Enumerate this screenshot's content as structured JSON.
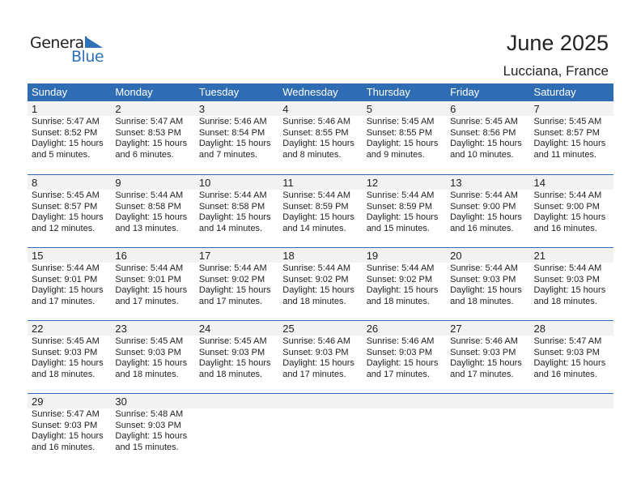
{
  "logo": {
    "text_general": "General",
    "text_blue": "Blue",
    "accent": "#2f72b8"
  },
  "header": {
    "title": "June 2025",
    "location": "Lucciana, France"
  },
  "weekdays": [
    "Sunday",
    "Monday",
    "Tuesday",
    "Wednesday",
    "Thursday",
    "Friday",
    "Saturday"
  ],
  "colors": {
    "header_bg": "#2e6db3",
    "date_band": "#f2f2f2"
  },
  "days": [
    {
      "day": "1",
      "sunrise": "Sunrise: 5:47 AM",
      "sunset": "Sunset: 8:52 PM",
      "daylight1": "Daylight: 15 hours",
      "daylight2": "and 5 minutes."
    },
    {
      "day": "2",
      "sunrise": "Sunrise: 5:47 AM",
      "sunset": "Sunset: 8:53 PM",
      "daylight1": "Daylight: 15 hours",
      "daylight2": "and 6 minutes."
    },
    {
      "day": "3",
      "sunrise": "Sunrise: 5:46 AM",
      "sunset": "Sunset: 8:54 PM",
      "daylight1": "Daylight: 15 hours",
      "daylight2": "and 7 minutes."
    },
    {
      "day": "4",
      "sunrise": "Sunrise: 5:46 AM",
      "sunset": "Sunset: 8:55 PM",
      "daylight1": "Daylight: 15 hours",
      "daylight2": "and 8 minutes."
    },
    {
      "day": "5",
      "sunrise": "Sunrise: 5:45 AM",
      "sunset": "Sunset: 8:55 PM",
      "daylight1": "Daylight: 15 hours",
      "daylight2": "and 9 minutes."
    },
    {
      "day": "6",
      "sunrise": "Sunrise: 5:45 AM",
      "sunset": "Sunset: 8:56 PM",
      "daylight1": "Daylight: 15 hours",
      "daylight2": "and 10 minutes."
    },
    {
      "day": "7",
      "sunrise": "Sunrise: 5:45 AM",
      "sunset": "Sunset: 8:57 PM",
      "daylight1": "Daylight: 15 hours",
      "daylight2": "and 11 minutes."
    },
    {
      "day": "8",
      "sunrise": "Sunrise: 5:45 AM",
      "sunset": "Sunset: 8:57 PM",
      "daylight1": "Daylight: 15 hours",
      "daylight2": "and 12 minutes."
    },
    {
      "day": "9",
      "sunrise": "Sunrise: 5:44 AM",
      "sunset": "Sunset: 8:58 PM",
      "daylight1": "Daylight: 15 hours",
      "daylight2": "and 13 minutes."
    },
    {
      "day": "10",
      "sunrise": "Sunrise: 5:44 AM",
      "sunset": "Sunset: 8:58 PM",
      "daylight1": "Daylight: 15 hours",
      "daylight2": "and 14 minutes."
    },
    {
      "day": "11",
      "sunrise": "Sunrise: 5:44 AM",
      "sunset": "Sunset: 8:59 PM",
      "daylight1": "Daylight: 15 hours",
      "daylight2": "and 14 minutes."
    },
    {
      "day": "12",
      "sunrise": "Sunrise: 5:44 AM",
      "sunset": "Sunset: 8:59 PM",
      "daylight1": "Daylight: 15 hours",
      "daylight2": "and 15 minutes."
    },
    {
      "day": "13",
      "sunrise": "Sunrise: 5:44 AM",
      "sunset": "Sunset: 9:00 PM",
      "daylight1": "Daylight: 15 hours",
      "daylight2": "and 16 minutes."
    },
    {
      "day": "14",
      "sunrise": "Sunrise: 5:44 AM",
      "sunset": "Sunset: 9:00 PM",
      "daylight1": "Daylight: 15 hours",
      "daylight2": "and 16 minutes."
    },
    {
      "day": "15",
      "sunrise": "Sunrise: 5:44 AM",
      "sunset": "Sunset: 9:01 PM",
      "daylight1": "Daylight: 15 hours",
      "daylight2": "and 17 minutes."
    },
    {
      "day": "16",
      "sunrise": "Sunrise: 5:44 AM",
      "sunset": "Sunset: 9:01 PM",
      "daylight1": "Daylight: 15 hours",
      "daylight2": "and 17 minutes."
    },
    {
      "day": "17",
      "sunrise": "Sunrise: 5:44 AM",
      "sunset": "Sunset: 9:02 PM",
      "daylight1": "Daylight: 15 hours",
      "daylight2": "and 17 minutes."
    },
    {
      "day": "18",
      "sunrise": "Sunrise: 5:44 AM",
      "sunset": "Sunset: 9:02 PM",
      "daylight1": "Daylight: 15 hours",
      "daylight2": "and 18 minutes."
    },
    {
      "day": "19",
      "sunrise": "Sunrise: 5:44 AM",
      "sunset": "Sunset: 9:02 PM",
      "daylight1": "Daylight: 15 hours",
      "daylight2": "and 18 minutes."
    },
    {
      "day": "20",
      "sunrise": "Sunrise: 5:44 AM",
      "sunset": "Sunset: 9:03 PM",
      "daylight1": "Daylight: 15 hours",
      "daylight2": "and 18 minutes."
    },
    {
      "day": "21",
      "sunrise": "Sunrise: 5:44 AM",
      "sunset": "Sunset: 9:03 PM",
      "daylight1": "Daylight: 15 hours",
      "daylight2": "and 18 minutes."
    },
    {
      "day": "22",
      "sunrise": "Sunrise: 5:45 AM",
      "sunset": "Sunset: 9:03 PM",
      "daylight1": "Daylight: 15 hours",
      "daylight2": "and 18 minutes."
    },
    {
      "day": "23",
      "sunrise": "Sunrise: 5:45 AM",
      "sunset": "Sunset: 9:03 PM",
      "daylight1": "Daylight: 15 hours",
      "daylight2": "and 18 minutes."
    },
    {
      "day": "24",
      "sunrise": "Sunrise: 5:45 AM",
      "sunset": "Sunset: 9:03 PM",
      "daylight1": "Daylight: 15 hours",
      "daylight2": "and 18 minutes."
    },
    {
      "day": "25",
      "sunrise": "Sunrise: 5:46 AM",
      "sunset": "Sunset: 9:03 PM",
      "daylight1": "Daylight: 15 hours",
      "daylight2": "and 17 minutes."
    },
    {
      "day": "26",
      "sunrise": "Sunrise: 5:46 AM",
      "sunset": "Sunset: 9:03 PM",
      "daylight1": "Daylight: 15 hours",
      "daylight2": "and 17 minutes."
    },
    {
      "day": "27",
      "sunrise": "Sunrise: 5:46 AM",
      "sunset": "Sunset: 9:03 PM",
      "daylight1": "Daylight: 15 hours",
      "daylight2": "and 17 minutes."
    },
    {
      "day": "28",
      "sunrise": "Sunrise: 5:47 AM",
      "sunset": "Sunset: 9:03 PM",
      "daylight1": "Daylight: 15 hours",
      "daylight2": "and 16 minutes."
    },
    {
      "day": "29",
      "sunrise": "Sunrise: 5:47 AM",
      "sunset": "Sunset: 9:03 PM",
      "daylight1": "Daylight: 15 hours",
      "daylight2": "and 16 minutes."
    },
    {
      "day": "30",
      "sunrise": "Sunrise: 5:48 AM",
      "sunset": "Sunset: 9:03 PM",
      "daylight1": "Daylight: 15 hours",
      "daylight2": "and 15 minutes."
    }
  ]
}
